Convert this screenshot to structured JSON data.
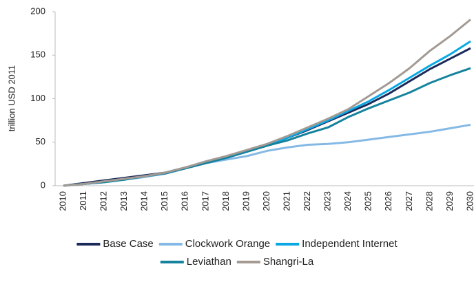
{
  "chart_data": {
    "type": "line",
    "y_label": "trillion USD 2011",
    "categories": [
      "2010",
      "2011",
      "2012",
      "2013",
      "2014",
      "2015",
      "2016",
      "2017",
      "2018",
      "2019",
      "2020",
      "2021",
      "2022",
      "2023",
      "2024",
      "2025",
      "2026",
      "2027",
      "2028",
      "2029",
      "2030"
    ],
    "series": [
      {
        "name": "Base Case",
        "color": "#1b2a5b",
        "values": [
          0,
          3,
          6,
          9,
          12,
          15,
          21,
          27,
          33,
          39,
          46,
          55,
          64,
          74,
          84,
          94,
          106,
          120,
          134,
          146,
          158
        ]
      },
      {
        "name": "Clockwork Orange",
        "color": "#85b9e5",
        "values": [
          0,
          2,
          4,
          7,
          10,
          14,
          20,
          26,
          30,
          34,
          40,
          44,
          47,
          48,
          50,
          53,
          56,
          59,
          62,
          66,
          70
        ]
      },
      {
        "name": "Independent Internet",
        "color": "#0aa8e3",
        "values": [
          0,
          2,
          4,
          7,
          11,
          14,
          20,
          26,
          32,
          39,
          46,
          55,
          65,
          75,
          86,
          97,
          110,
          124,
          138,
          151,
          166
        ]
      },
      {
        "name": "Leviathan",
        "color": "#15829e",
        "values": [
          0,
          2,
          4,
          7,
          11,
          14,
          20,
          26,
          32,
          39,
          46,
          52,
          60,
          67,
          79,
          89,
          98,
          107,
          118,
          127,
          135
        ]
      },
      {
        "name": "Shangri-La",
        "color": "#a39a94",
        "values": [
          0,
          2,
          5,
          8,
          11,
          15,
          21,
          28,
          34,
          41,
          48,
          57,
          67,
          77,
          88,
          103,
          118,
          135,
          155,
          172,
          191
        ]
      }
    ],
    "ylim": [
      0,
      200
    ],
    "yticks": [
      0,
      50,
      100,
      150,
      200
    ],
    "legend": "bottom"
  }
}
